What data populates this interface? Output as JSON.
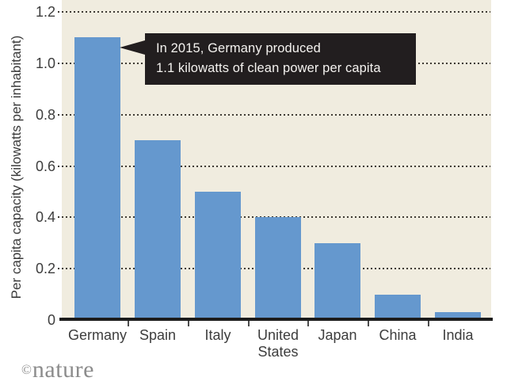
{
  "chart_data": {
    "type": "bar",
    "title": "",
    "ylabel": "Per capita capacity (kilowatts per inhabitant)",
    "xlabel": "",
    "categories": [
      "Germany",
      "Spain",
      "Italy",
      "United States",
      "Japan",
      "China",
      "India"
    ],
    "values": [
      1.1,
      0.7,
      0.5,
      0.4,
      0.3,
      0.1,
      0.03
    ],
    "ylim": [
      0,
      1.2
    ],
    "ytick_labels": [
      "0",
      "0.2",
      "0.4",
      "0.6",
      "0.8",
      "1.0",
      "1.2"
    ],
    "ytick_values": [
      0,
      0.2,
      0.4,
      0.6,
      0.8,
      1.0,
      1.2
    ],
    "grid": "dotted horizontal",
    "legend": "none",
    "colors": {
      "bar": "#6598ce",
      "plot_background": "#f0ecdf",
      "grid_dots": "#3e3a33",
      "axis_line": "#1c1c1c",
      "label_text": "#3d3d3d"
    },
    "annotation": {
      "lines": [
        "In 2015, Germany produced",
        "1.1 kilowatts of clean power per capita"
      ],
      "bg": "#221e1f",
      "text_color": "#f4f2ef",
      "target_category": "Germany"
    }
  },
  "footer": {
    "credit_symbol": "©",
    "credit_name": "nature"
  }
}
